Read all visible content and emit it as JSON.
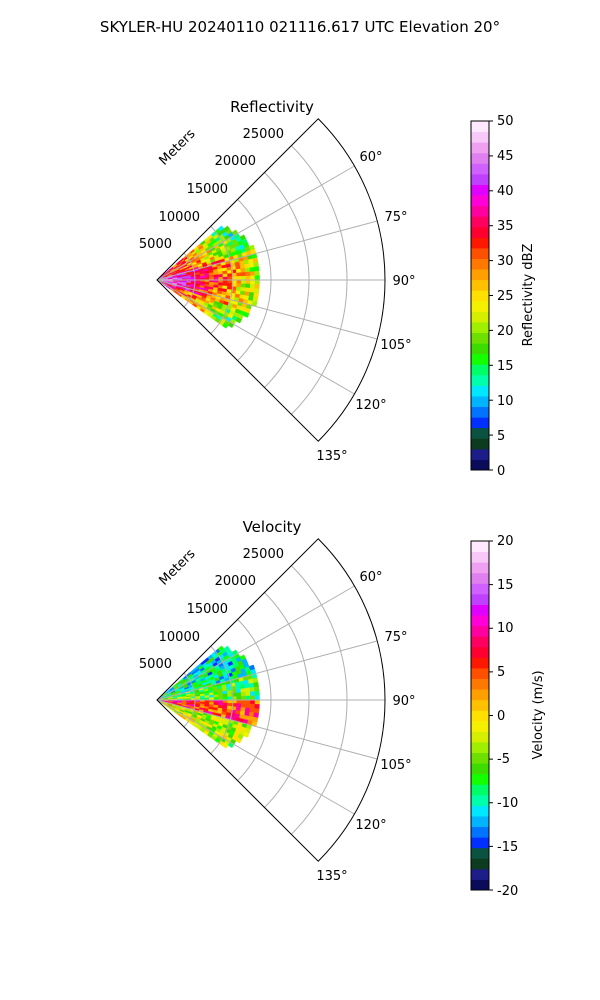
{
  "suptitle": "SKYLER-HU  20240110  021116.617 UTC Elevation 20°",
  "panels": [
    {
      "title": "Reflectivity",
      "range_label": "Meters",
      "range_ticks": [
        "5000",
        "10000",
        "15000",
        "20000",
        "25000"
      ],
      "angle_ticks": [
        "60°",
        "75°",
        "90°",
        "105°",
        "120°",
        "135°"
      ],
      "colorbar": {
        "label": "Reflectivity dBZ",
        "ticks": [
          "0",
          "5",
          "10",
          "15",
          "20",
          "25",
          "30",
          "35",
          "40",
          "45",
          "50"
        ]
      }
    },
    {
      "title": "Velocity",
      "range_label": "Meters",
      "range_ticks": [
        "5000",
        "10000",
        "15000",
        "20000",
        "25000"
      ],
      "angle_ticks": [
        "60°",
        "75°",
        "90°",
        "105°",
        "120°",
        "135°"
      ],
      "colorbar": {
        "label": "Velocity (m/s)",
        "ticks": [
          "-20",
          "-15",
          "-10",
          "-5",
          "0",
          "5",
          "10",
          "15",
          "20"
        ]
      }
    }
  ],
  "chart_data": [
    {
      "type": "heatmap",
      "projection": "polar sector",
      "title": "Reflectivity",
      "theta_range_deg": [
        45,
        135
      ],
      "r_range_m": [
        0,
        30000
      ],
      "r_ticks": [
        5000,
        10000,
        15000,
        20000,
        25000
      ],
      "theta_ticks_deg": [
        60,
        75,
        90,
        105,
        120,
        135
      ],
      "grid": true,
      "colorbar": {
        "label": "Reflectivity dBZ",
        "min": 0,
        "max": 50,
        "colors": [
          "#0b0b5c",
          "#1d1d8a",
          "#0c3b1f",
          "#0b5340",
          "#0030ff",
          "#0074ff",
          "#00b4ff",
          "#00e8ff",
          "#00ffaa",
          "#00ff66",
          "#14ff00",
          "#3cdc00",
          "#6ee000",
          "#a0ee00",
          "#d4f000",
          "#f5f000",
          "#ffe000",
          "#ffc000",
          "#ffa000",
          "#ff7800",
          "#ff5000",
          "#ff1800",
          "#ff0030",
          "#ff0060",
          "#ff00a0",
          "#ff00d8",
          "#e000ff",
          "#c040ff",
          "#d060ff",
          "#e080f0",
          "#f0a0f0",
          "#f8c8f8",
          "#fde8fd"
        ]
      },
      "echo_extent_m": [
        0,
        13500
      ],
      "echo_theta_deg": [
        50,
        125
      ]
    },
    {
      "type": "heatmap",
      "projection": "polar sector",
      "title": "Velocity",
      "theta_range_deg": [
        45,
        135
      ],
      "r_range_m": [
        0,
        30000
      ],
      "r_ticks": [
        5000,
        10000,
        15000,
        20000,
        25000
      ],
      "theta_ticks_deg": [
        60,
        75,
        90,
        105,
        120,
        135
      ],
      "grid": true,
      "colorbar": {
        "label": "Velocity (m/s)",
        "min": -20,
        "max": 20,
        "colors": [
          "#0b0b5c",
          "#1d1d8a",
          "#0c3b1f",
          "#0b5340",
          "#0030ff",
          "#0074ff",
          "#00b4ff",
          "#00e8ff",
          "#00ffaa",
          "#00ff66",
          "#14ff00",
          "#3cdc00",
          "#6ee000",
          "#a0ee00",
          "#d4f000",
          "#f5f000",
          "#ffe000",
          "#ffc000",
          "#ffa000",
          "#ff7800",
          "#ff5000",
          "#ff1800",
          "#ff0030",
          "#ff0060",
          "#ff00a0",
          "#ff00d8",
          "#e000ff",
          "#c040ff",
          "#d060ff",
          "#e080f0",
          "#f0a0f0",
          "#f8c8f8",
          "#fde8fd"
        ]
      },
      "echo_extent_m": [
        0,
        13500
      ],
      "echo_theta_deg": [
        50,
        125
      ]
    }
  ]
}
